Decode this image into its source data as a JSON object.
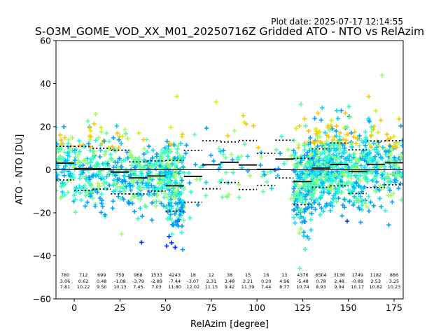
{
  "chart_data": {
    "type": "scatter",
    "title": "S-O3M_GOME_VOD_XX_M01_20250716Z Gridded ATO - NTO vs RelAzim",
    "subtitle": "Plot date: 2025-07-17 12:14:55",
    "xlabel": "RelAzim [degree]",
    "ylabel": "ATO - NTO [DU]",
    "xlim": [
      -10,
      180
    ],
    "ylim": [
      -60,
      60
    ],
    "xticks": [
      0,
      25,
      50,
      75,
      100,
      125,
      150,
      175
    ],
    "yticks": [
      -60,
      -40,
      -20,
      0,
      20,
      40,
      60
    ],
    "grid": false,
    "zero_line": 0,
    "bins": [
      {
        "x": -5,
        "count": "780",
        "mean": "3.06",
        "std": "7.81"
      },
      {
        "x": 5,
        "count": "712",
        "mean": "0.62",
        "std": "10.22"
      },
      {
        "x": 15,
        "count": "699",
        "mean": "0.48",
        "std": "9.50"
      },
      {
        "x": 25,
        "count": "759",
        "mean": "-1.08",
        "std": "10.13"
      },
      {
        "x": 35,
        "count": "968",
        "mean": "-3.79",
        "std": "7.45"
      },
      {
        "x": 45,
        "count": "1533",
        "mean": "-2.89",
        "std": "7.03"
      },
      {
        "x": 55,
        "count": "4243",
        "mean": "-7.44",
        "std": "11.80"
      },
      {
        "x": 65,
        "count": "18",
        "mean": "-3.07",
        "std": "12.02"
      },
      {
        "x": 75,
        "count": "12",
        "mean": "2.31",
        "std": "11.15"
      },
      {
        "x": 85,
        "count": "38",
        "mean": "3.48",
        "std": "9.42"
      },
      {
        "x": 95,
        "count": "15",
        "mean": "2.21",
        "std": "11.39"
      },
      {
        "x": 105,
        "count": "16",
        "mean": "0.20",
        "std": "7.44"
      },
      {
        "x": 115,
        "count": "13",
        "mean": "4.96",
        "std": "8.77"
      },
      {
        "x": 125,
        "count": "4376",
        "mean": "-5.48",
        "std": "10.74"
      },
      {
        "x": 135,
        "count": "8504",
        "mean": "0.78",
        "std": "8.93"
      },
      {
        "x": 145,
        "count": "3136",
        "mean": "2.48",
        "std": "9.94"
      },
      {
        "x": 155,
        "count": "1749",
        "mean": "-0.89",
        "std": "10.17"
      },
      {
        "x": 165,
        "count": "1182",
        "mean": "2.53",
        "std": "10.82"
      },
      {
        "x": 175,
        "count": "886",
        "mean": "3.25",
        "std": "10.23"
      }
    ],
    "point_colors": [
      "#00a0ff",
      "#00d4ff",
      "#20ffd8",
      "#5cffa0",
      "#a0ff60",
      "#d8f000",
      "#ffc400",
      "#0030ff"
    ]
  }
}
